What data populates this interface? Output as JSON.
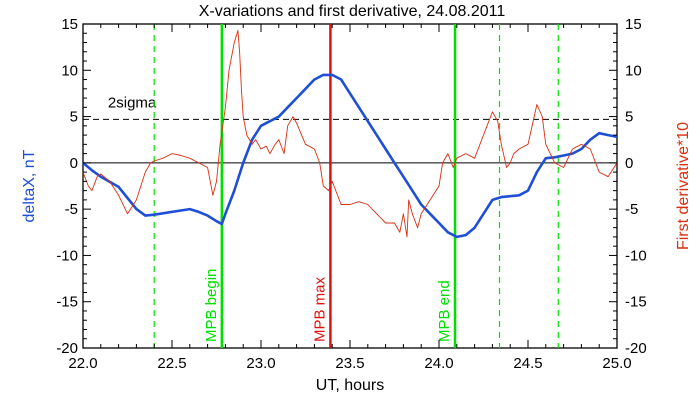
{
  "chart_data": {
    "type": "line",
    "title": "X-variations and first derivative, 24.08.2011",
    "xlabel": "UT, hours",
    "ylabel_left": "deltaX, nT",
    "ylabel_right": "First derivative*10",
    "xlim": [
      22.0,
      25.0
    ],
    "ylim": [
      -20,
      15
    ],
    "xticks": [
      "22.0",
      "22.5",
      "23.0",
      "23.5",
      "24.0",
      "24.5",
      "25.0"
    ],
    "yticks": [
      "-20",
      "-15",
      "-10",
      "-5",
      "0",
      "5",
      "10",
      "15"
    ],
    "threshold": {
      "label": "2sigma",
      "value": 4.7
    },
    "colors": {
      "deltaX": "#1f4fd6",
      "derivative": "#d92e10",
      "green": "#00e000",
      "red": "#e01010",
      "axis": "#000000"
    },
    "series": [
      {
        "key": "deltaX",
        "x": [
          22.0,
          22.05,
          22.1,
          22.2,
          22.3,
          22.35,
          22.4,
          22.5,
          22.6,
          22.65,
          22.7,
          22.75,
          22.78,
          22.8,
          22.85,
          22.9,
          22.95,
          23.0,
          23.05,
          23.1,
          23.15,
          23.2,
          23.25,
          23.3,
          23.35,
          23.4,
          23.45,
          23.5,
          23.55,
          23.6,
          23.65,
          23.7,
          23.75,
          23.8,
          23.85,
          23.9,
          23.95,
          24.0,
          24.05,
          24.1,
          24.15,
          24.2,
          24.25,
          24.3,
          24.35,
          24.4,
          24.45,
          24.5,
          24.55,
          24.6,
          24.65,
          24.7,
          24.75,
          24.8,
          24.85,
          24.9,
          24.95,
          25.0
        ],
        "values": [
          0.0,
          -0.8,
          -1.5,
          -2.6,
          -5.0,
          -5.7,
          -5.6,
          -5.3,
          -5.0,
          -5.3,
          -5.7,
          -6.3,
          -6.6,
          -5.5,
          -3.0,
          0.0,
          2.5,
          4.0,
          4.5,
          5.0,
          6.0,
          7.0,
          8.0,
          9.0,
          9.5,
          9.5,
          9.0,
          7.5,
          6.0,
          4.5,
          3.0,
          1.5,
          0.0,
          -1.5,
          -3.0,
          -4.5,
          -5.5,
          -6.5,
          -7.5,
          -8.0,
          -7.8,
          -7.0,
          -5.5,
          -4.0,
          -3.7,
          -3.6,
          -3.5,
          -3.0,
          -1.0,
          0.5,
          0.6,
          0.8,
          1.0,
          1.5,
          2.5,
          3.2,
          3.0,
          2.8
        ]
      },
      {
        "key": "derivative",
        "x": [
          22.0,
          22.03,
          22.05,
          22.08,
          22.1,
          22.15,
          22.2,
          22.25,
          22.3,
          22.35,
          22.38,
          22.4,
          22.45,
          22.5,
          22.55,
          22.6,
          22.65,
          22.7,
          22.73,
          22.75,
          22.77,
          22.8,
          22.82,
          22.85,
          22.87,
          22.88,
          22.89,
          22.9,
          22.92,
          22.95,
          22.97,
          23.0,
          23.03,
          23.05,
          23.08,
          23.1,
          23.13,
          23.15,
          23.18,
          23.2,
          23.25,
          23.3,
          23.33,
          23.35,
          23.38,
          23.4,
          23.45,
          23.5,
          23.55,
          23.6,
          23.65,
          23.7,
          23.75,
          23.78,
          23.8,
          23.82,
          23.83,
          23.85,
          23.88,
          23.9,
          23.95,
          24.0,
          24.02,
          24.05,
          24.08,
          24.1,
          24.15,
          24.2,
          24.25,
          24.3,
          24.33,
          24.35,
          24.38,
          24.4,
          24.42,
          24.45,
          24.5,
          24.55,
          24.58,
          24.6,
          24.65,
          24.7,
          24.75,
          24.8,
          24.85,
          24.9,
          24.95,
          25.0
        ],
        "values": [
          -1.0,
          -2.5,
          -3.0,
          -1.5,
          -1.2,
          -2.0,
          -3.5,
          -5.5,
          -4.0,
          -1.0,
          0.0,
          0.2,
          0.5,
          1.0,
          0.8,
          0.5,
          0.0,
          -0.5,
          -3.5,
          -2.0,
          2.0,
          6.0,
          10.0,
          13.0,
          14.3,
          12.0,
          8.0,
          5.0,
          3.0,
          2.0,
          2.5,
          1.5,
          1.8,
          1.0,
          2.0,
          2.5,
          1.0,
          4.0,
          5.0,
          4.3,
          2.0,
          1.5,
          0.0,
          -2.5,
          -3.0,
          -2.0,
          -4.5,
          -4.5,
          -4.2,
          -4.5,
          -5.5,
          -6.5,
          -6.5,
          -7.5,
          -5.5,
          -8.0,
          -4.0,
          -5.5,
          -7.0,
          -5.5,
          -4.0,
          -2.5,
          0.0,
          1.0,
          -0.5,
          0.5,
          1.0,
          0.5,
          3.0,
          5.5,
          4.5,
          2.0,
          -0.5,
          0.0,
          1.0,
          1.5,
          2.0,
          6.3,
          5.0,
          2.0,
          0.0,
          -0.5,
          1.5,
          2.0,
          1.5,
          -1.0,
          -1.5,
          0.0
        ]
      }
    ],
    "vertical_lines": [
      {
        "x": 22.78,
        "label": "MPB begin",
        "color": "green",
        "style": "solid"
      },
      {
        "x": 23.39,
        "label": "MPB max",
        "color": "red",
        "style": "solid"
      },
      {
        "x": 24.09,
        "label": "MPB end",
        "color": "green",
        "style": "solid"
      },
      {
        "x": 22.4,
        "color": "green",
        "style": "dashed"
      },
      {
        "x": 24.34,
        "color": "green",
        "style": "dashed"
      },
      {
        "x": 24.67,
        "color": "green",
        "style": "dashed"
      }
    ],
    "legend": "none",
    "grid": false
  }
}
